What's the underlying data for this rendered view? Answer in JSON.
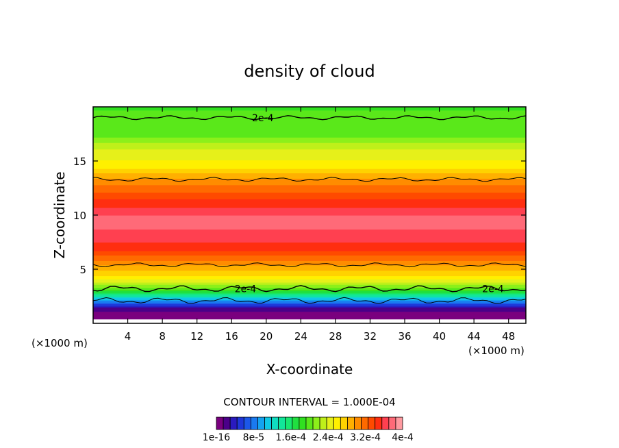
{
  "chart_data": {
    "type": "heatmap",
    "title": "density of cloud",
    "xlabel": "X-coordinate",
    "ylabel": "Z-coordinate",
    "x_unit": "(×1000 m)",
    "xlim": [
      0,
      50
    ],
    "ylim": [
      0,
      20
    ],
    "xticks": [
      4,
      8,
      12,
      16,
      20,
      24,
      28,
      32,
      36,
      40,
      44,
      48
    ],
    "yticks": [
      5,
      10,
      15
    ],
    "contour_interval_text": "CONTOUR INTERVAL = 1.000E-04",
    "contour_labels": [
      "2e-4",
      "2e-4",
      "2e-4"
    ],
    "colorbar": {
      "min": 1e-16,
      "max": 0.0004,
      "labels": [
        "1e-16",
        "8e-5",
        "1.6e-4",
        "2.4e-4",
        "3.2e-4",
        "4e-4"
      ],
      "colors": [
        "#7a007f",
        "#4b0089",
        "#2a1abf",
        "#1e36d8",
        "#1c57e8",
        "#1a7af0",
        "#14a3f0",
        "#10c8e6",
        "#10dcc0",
        "#12e69a",
        "#18e870",
        "#20e040",
        "#30e020",
        "#5ae81a",
        "#8cf01a",
        "#bff01a",
        "#e6f01a",
        "#fff000",
        "#ffd200",
        "#ffb000",
        "#ff8c00",
        "#ff6a00",
        "#ff4a00",
        "#ff2e10",
        "#ff4050",
        "#ff6a78",
        "#ff9aa0"
      ]
    },
    "profile": [
      {
        "z": 0.4,
        "value": 1e-16
      },
      {
        "z": 1.4,
        "value": 2e-05
      },
      {
        "z": 2.0,
        "value": 8e-05
      },
      {
        "z": 2.6,
        "value": 0.00014
      },
      {
        "z": 3.2,
        "value": 0.0002
      },
      {
        "z": 4.2,
        "value": 0.00026
      },
      {
        "z": 5.5,
        "value": 0.0003
      },
      {
        "z": 7.0,
        "value": 0.00035
      },
      {
        "z": 9.5,
        "value": 0.00038
      },
      {
        "z": 11.5,
        "value": 0.00034
      },
      {
        "z": 13.3,
        "value": 0.0003
      },
      {
        "z": 14.5,
        "value": 0.00026
      },
      {
        "z": 16.0,
        "value": 0.00024
      },
      {
        "z": 17.5,
        "value": 0.0002
      },
      {
        "z": 19.0,
        "value": 0.0002
      },
      {
        "z": 20.0,
        "value": 0.00019
      }
    ],
    "contours": [
      {
        "value": 0.0002,
        "z": 19.0
      },
      {
        "value": 0.0003,
        "z": 13.3
      },
      {
        "value": 0.0003,
        "z": 5.4
      },
      {
        "value": 0.0002,
        "z": 3.2
      },
      {
        "value": 0.0001,
        "z": 2.1
      }
    ]
  }
}
